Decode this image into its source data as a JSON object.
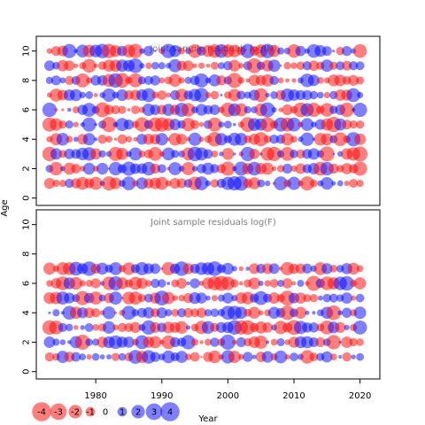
{
  "chart_data": {
    "type": "scatter",
    "description_kind": "bubble residual plots",
    "ylabel": "Age",
    "xlabel": "Year",
    "x_ticks": [
      1980,
      1990,
      2000,
      2010,
      2020
    ],
    "xlim": [
      1971,
      2023
    ],
    "colors": {
      "positive": "#0000ff",
      "negative": "#ff0000"
    },
    "panels": [
      {
        "title": "Joint sample residuals log(N)",
        "ylim": [
          -0.5,
          11
        ],
        "y_ticks": [
          0,
          2,
          4,
          6,
          8,
          10
        ],
        "years": [
          1973,
          2020
        ],
        "ages": [
          1,
          2,
          3,
          4,
          5,
          6,
          7,
          8,
          9,
          10
        ],
        "seed": 7
      },
      {
        "title": "Joint sample residuals log(F)",
        "ylim": [
          -0.5,
          11
        ],
        "y_ticks": [
          0,
          2,
          4,
          6,
          8,
          10
        ],
        "years": [
          1973,
          2020
        ],
        "ages": [
          1,
          2,
          3,
          4,
          5,
          6,
          7
        ],
        "seed": 19
      }
    ],
    "legend": {
      "values": [
        -4,
        -3,
        -2,
        -1,
        0,
        1,
        2,
        3,
        4
      ],
      "labels": [
        "-4",
        "-3",
        "-2",
        "-1",
        "0",
        "1",
        "2",
        "3",
        "4"
      ]
    }
  }
}
